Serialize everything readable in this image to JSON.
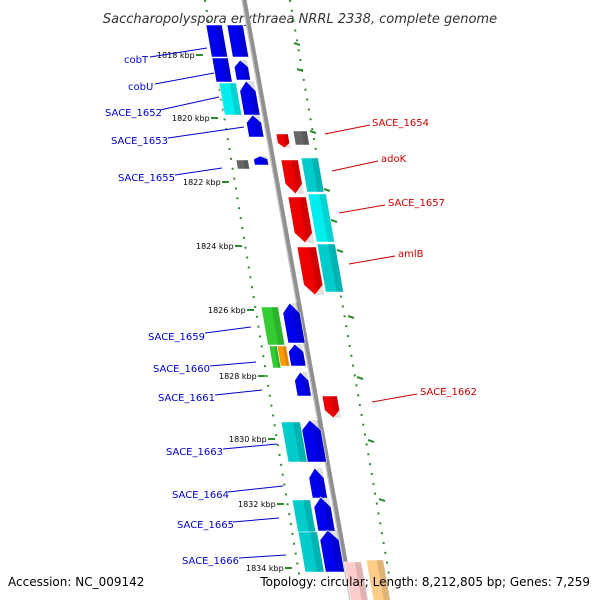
{
  "title": "Saccharopolyspora erythraea NRRL 2338, complete genome",
  "footer": {
    "accession": "Accession: NC_009142",
    "summary": "Topology: circular; Length: 8,212,805 bp; Genes: 7,259"
  },
  "colors": {
    "left_label": "#0000cc",
    "right_label": "#cc0000",
    "backbone": "#909090",
    "tick_dots": "#2e8b2e"
  },
  "scale_labels": [
    "1818 kbp",
    "1820 kbp",
    "1822 kbp",
    "1824 kbp",
    "1826 kbp",
    "1828 kbp",
    "1830 kbp",
    "1832 kbp",
    "1834 kbp"
  ],
  "left_genes": [
    {
      "label": "cobT",
      "color": "#0000cc"
    },
    {
      "label": "cobU",
      "color": "#0000cc"
    },
    {
      "label": "SACE_1652",
      "color": "#0000cc"
    },
    {
      "label": "SACE_1653",
      "color": "#0000cc"
    },
    {
      "label": "SACE_1655",
      "color": "#0000cc"
    },
    {
      "label": "SACE_1659",
      "color": "#0000cc"
    },
    {
      "label": "SACE_1660",
      "color": "#0000cc"
    },
    {
      "label": "SACE_1661",
      "color": "#0000cc"
    },
    {
      "label": "SACE_1663",
      "color": "#0000cc"
    },
    {
      "label": "SACE_1664",
      "color": "#0000cc"
    },
    {
      "label": "SACE_1665",
      "color": "#0000cc"
    },
    {
      "label": "SACE_1666",
      "color": "#0000cc"
    }
  ],
  "right_genes": [
    {
      "label": "SACE_1654",
      "color": "#cc0000"
    },
    {
      "label": "adoK",
      "color": "#cc0000"
    },
    {
      "label": "SACE_1657",
      "color": "#cc0000"
    },
    {
      "label": "amlB",
      "color": "#cc0000"
    },
    {
      "label": "SACE_1662",
      "color": "#cc0000"
    }
  ]
}
